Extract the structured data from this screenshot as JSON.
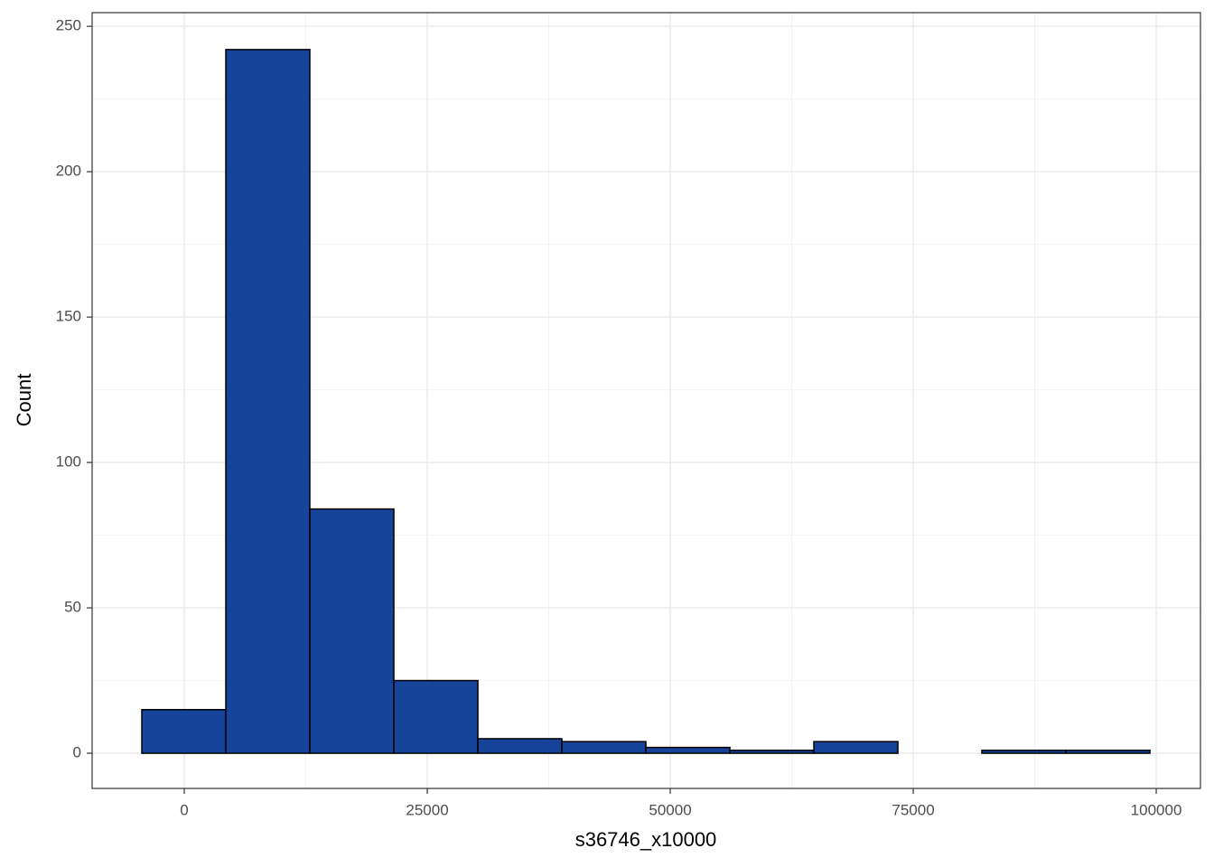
{
  "chart_data": {
    "type": "histogram",
    "x_label": "s36746_x10000",
    "y_label": "Count",
    "bins": [
      -4368,
      4275,
      12918,
      21561,
      30204,
      38847,
      47490,
      56133,
      64776,
      73419,
      82062,
      90705,
      99348
    ],
    "counts": [
      15,
      242,
      84,
      25,
      5,
      4,
      2,
      1,
      4,
      0,
      1,
      1
    ],
    "color": "#17449b",
    "edge_color": "#000000",
    "xlim": [
      -9480,
      104550
    ],
    "ylim": [
      -12.1,
      254.7
    ],
    "xticks": [
      0,
      25000,
      50000,
      75000,
      100000
    ],
    "yticks": [
      0,
      50,
      100,
      150,
      200,
      250
    ],
    "grid": true
  }
}
